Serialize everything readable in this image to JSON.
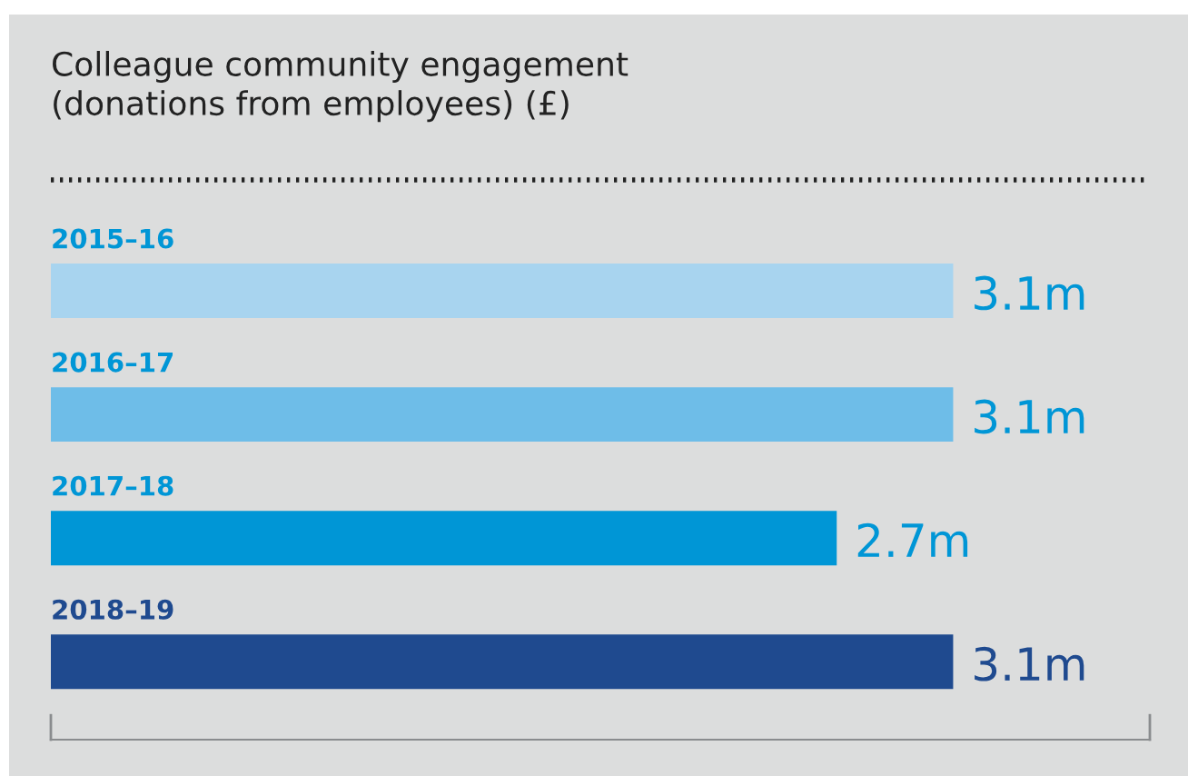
{
  "chart_data": {
    "type": "bar",
    "orientation": "horizontal",
    "title": "Colleague community engagement\n(donations from employees) (£)",
    "categories": [
      "2015–16",
      "2016–17",
      "2017–18",
      "2018–19"
    ],
    "values": [
      3.1,
      3.1,
      2.7,
      3.1
    ],
    "colors": [
      "#a8d4ef",
      "#6ebde8",
      "#0096d6",
      "#1f4a8f"
    ],
    "value_labels": [
      "3.1m",
      "3.1m",
      "2.7m",
      "3.1m"
    ]
  }
}
